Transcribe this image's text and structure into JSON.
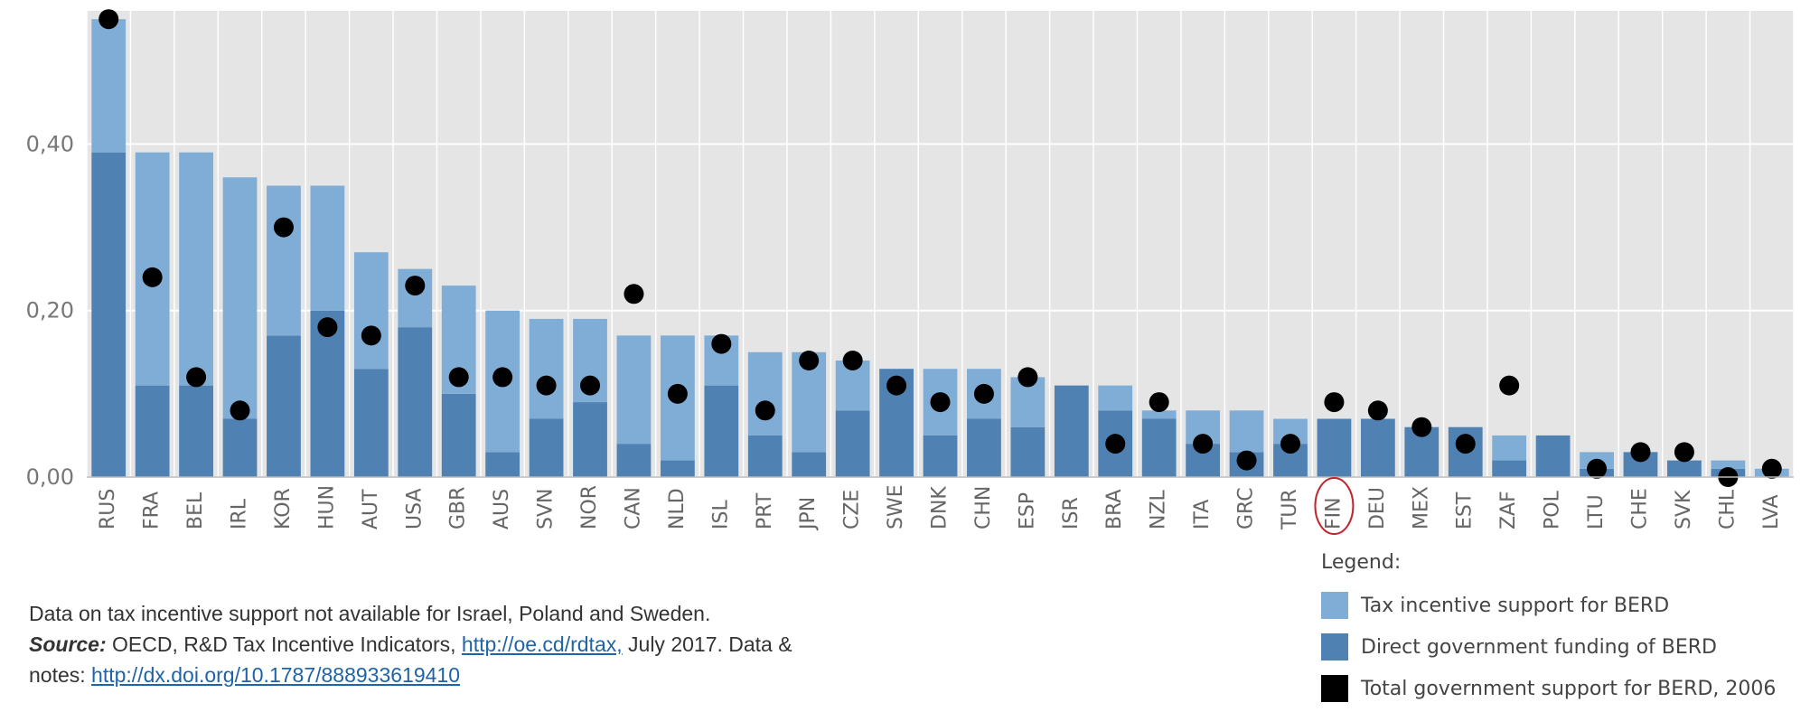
{
  "chart_data": {
    "type": "bar",
    "stacked": true,
    "categories": [
      "RUS",
      "FRA",
      "BEL",
      "IRL",
      "KOR",
      "HUN",
      "AUT",
      "USA",
      "GBR",
      "AUS",
      "SVN",
      "NOR",
      "CAN",
      "NLD",
      "ISL",
      "PRT",
      "JPN",
      "CZE",
      "SWE",
      "DNK",
      "CHN",
      "ESP",
      "ISR",
      "BRA",
      "NZL",
      "ITA",
      "GRC",
      "TUR",
      "FIN",
      "DEU",
      "MEX",
      "EST",
      "ZAF",
      "POL",
      "LTU",
      "CHE",
      "SVK",
      "CHL",
      "LVA"
    ],
    "series": [
      {
        "name": "Direct government funding of BERD",
        "color": "#4f81b3",
        "values": [
          0.39,
          0.11,
          0.11,
          0.07,
          0.17,
          0.2,
          0.13,
          0.18,
          0.1,
          0.03,
          0.07,
          0.09,
          0.04,
          0.02,
          0.11,
          0.05,
          0.03,
          0.08,
          0.13,
          0.05,
          0.07,
          0.06,
          0.11,
          0.08,
          0.07,
          0.04,
          0.03,
          0.04,
          0.07,
          0.07,
          0.06,
          0.06,
          0.02,
          0.05,
          0.01,
          0.03,
          0.02,
          0.01,
          0.0
        ]
      },
      {
        "name": "Tax incentive support for BERD",
        "color": "#7fadd6",
        "values": [
          0.16,
          0.28,
          0.28,
          0.29,
          0.18,
          0.15,
          0.14,
          0.07,
          0.13,
          0.17,
          0.12,
          0.1,
          0.13,
          0.15,
          0.06,
          0.1,
          0.12,
          0.06,
          0.0,
          0.08,
          0.06,
          0.06,
          0.0,
          0.03,
          0.01,
          0.04,
          0.05,
          0.03,
          0.0,
          0.0,
          0.0,
          0.0,
          0.03,
          0.0,
          0.02,
          0.0,
          0.0,
          0.01,
          0.01
        ]
      },
      {
        "name": "Total government support for BERD, 2006",
        "type": "scatter",
        "color": "#000000",
        "values": [
          0.55,
          0.24,
          0.12,
          0.08,
          0.3,
          0.18,
          0.17,
          0.23,
          0.12,
          0.12,
          0.11,
          0.11,
          0.22,
          0.1,
          0.16,
          0.08,
          0.14,
          0.14,
          0.11,
          0.09,
          0.1,
          0.12,
          null,
          0.04,
          0.09,
          0.04,
          0.02,
          0.04,
          0.09,
          0.08,
          0.06,
          0.04,
          0.11,
          null,
          0.01,
          0.03,
          0.03,
          0.0,
          0.01
        ]
      }
    ],
    "yticks": [
      0.0,
      0.2,
      0.4
    ],
    "ytick_labels": [
      "0,00",
      "0,20",
      "0,40"
    ],
    "ylim": [
      0,
      0.56
    ],
    "grid": true,
    "highlighted_category": "FIN",
    "legend_position": "bottom-right"
  },
  "colors": {
    "plot_background": "#e5e5e5",
    "gridline": "#ffffff",
    "highlight_ring": "#c0272d",
    "link": "#1f64a8"
  },
  "legend": {
    "title": "Legend:",
    "items": [
      {
        "label": "Tax incentive support for BERD",
        "color": "#7fadd6"
      },
      {
        "label": "Direct government funding of BERD",
        "color": "#4f81b3"
      },
      {
        "label": "Total government support for BERD, 2006",
        "color": "#000000"
      }
    ]
  },
  "notes": {
    "line1": "Data on tax incentive support not available for Israel, Poland and Sweden.",
    "source_label": "Source:",
    "source_text": " OECD, R&D Tax Incentive Indicators, ",
    "source_link": "http://oe.cd/rdtax,",
    "source_after": " July 2017. Data &",
    "notes_label": "notes: ",
    "notes_link": "http://dx.doi.org/10.1787/888933619410"
  }
}
